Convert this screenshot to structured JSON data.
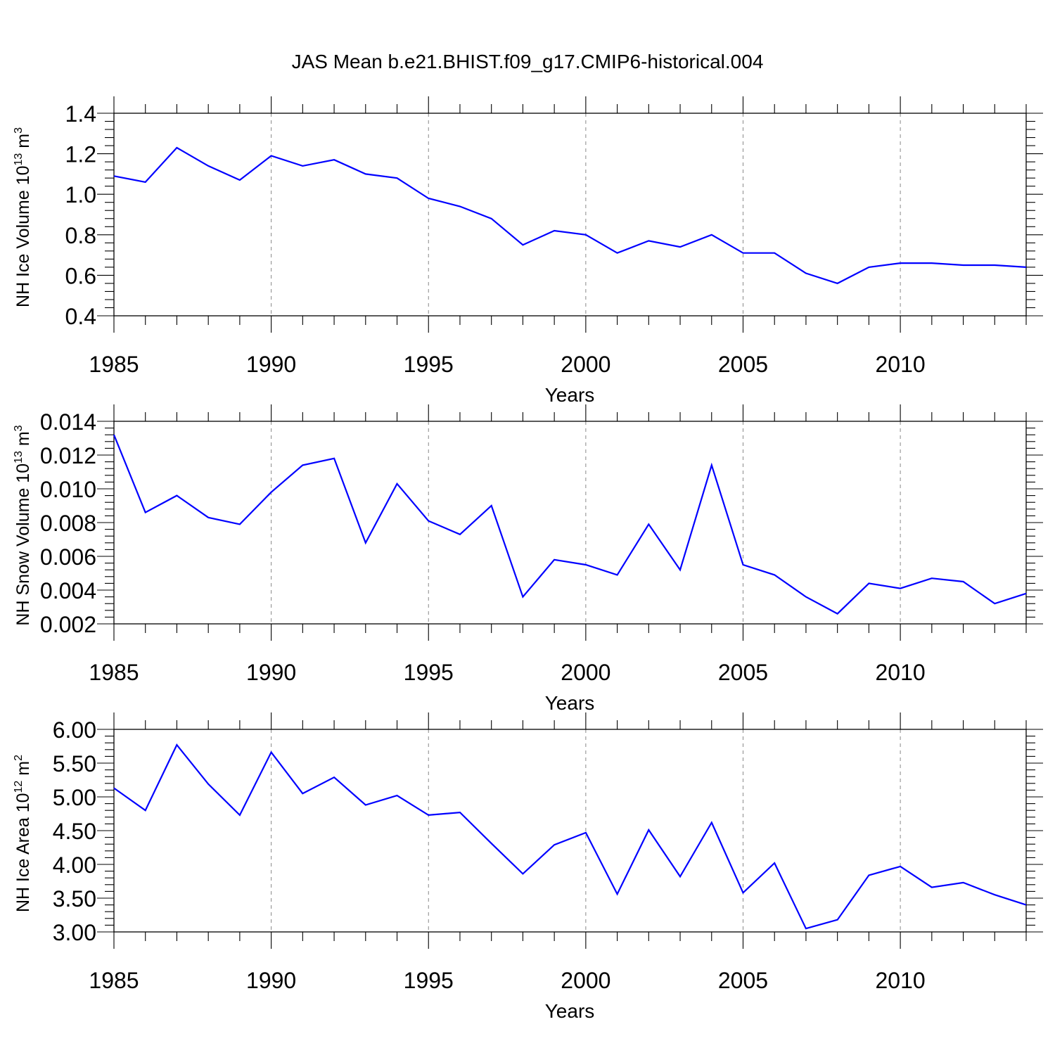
{
  "title": "JAS Mean b.e21.BHIST.f09_g17.CMIP6-historical.004",
  "colors": {
    "line": "#0000ff",
    "axis": "#000000",
    "grid": "#888888"
  },
  "chart_data": [
    {
      "type": "line",
      "name": "ice-volume",
      "ylabel_main": "NH Ice Volume 10",
      "ylabel_sup": "13",
      "ylabel_unit": " m",
      "ylabel_unit_sup": "3",
      "xlabel": "Years",
      "xlim": [
        1985,
        2014
      ],
      "ylim": [
        0.4,
        1.4
      ],
      "yticks": [
        0.4,
        0.6,
        0.8,
        1.0,
        1.2,
        1.4
      ],
      "ytick_labels": [
        "0.4",
        "0.6",
        "0.8",
        "1.0",
        "1.2",
        "1.4"
      ],
      "xticks": [
        1985,
        1990,
        1995,
        2000,
        2005,
        2010
      ],
      "xtick_labels": [
        "1985",
        "1990",
        "1995",
        "2000",
        "2005",
        "2010"
      ],
      "x": [
        1985,
        1986,
        1987,
        1988,
        1989,
        1990,
        1991,
        1992,
        1993,
        1994,
        1995,
        1996,
        1997,
        1998,
        1999,
        2000,
        2001,
        2002,
        2003,
        2004,
        2005,
        2006,
        2007,
        2008,
        2009,
        2010,
        2011,
        2012,
        2013,
        2014
      ],
      "values": [
        1.09,
        1.06,
        1.23,
        1.14,
        1.07,
        1.19,
        1.14,
        1.17,
        1.1,
        1.08,
        0.98,
        0.94,
        0.88,
        0.75,
        0.82,
        0.8,
        0.71,
        0.77,
        0.74,
        0.8,
        0.71,
        0.71,
        0.61,
        0.56,
        0.64,
        0.66,
        0.66,
        0.65,
        0.65,
        0.64
      ]
    },
    {
      "type": "line",
      "name": "snow-volume",
      "ylabel_main": "NH Snow Volume 10",
      "ylabel_sup": "13",
      "ylabel_unit": " m",
      "ylabel_unit_sup": "3",
      "xlabel": "Years",
      "xlim": [
        1985,
        2014
      ],
      "ylim": [
        0.002,
        0.014
      ],
      "yticks": [
        0.002,
        0.004,
        0.006,
        0.008,
        0.01,
        0.012,
        0.014
      ],
      "ytick_labels": [
        "0.002",
        "0.004",
        "0.006",
        "0.008",
        "0.010",
        "0.012",
        "0.014"
      ],
      "xticks": [
        1985,
        1990,
        1995,
        2000,
        2005,
        2010
      ],
      "xtick_labels": [
        "1985",
        "1990",
        "1995",
        "2000",
        "2005",
        "2010"
      ],
      "x": [
        1985,
        1986,
        1987,
        1988,
        1989,
        1990,
        1991,
        1992,
        1993,
        1994,
        1995,
        1996,
        1997,
        1998,
        1999,
        2000,
        2001,
        2002,
        2003,
        2004,
        2005,
        2006,
        2007,
        2008,
        2009,
        2010,
        2011,
        2012,
        2013,
        2014
      ],
      "values": [
        0.0132,
        0.0086,
        0.0096,
        0.0083,
        0.0079,
        0.0098,
        0.0114,
        0.0118,
        0.0068,
        0.0103,
        0.0081,
        0.0073,
        0.009,
        0.0036,
        0.0058,
        0.0055,
        0.0049,
        0.0079,
        0.0052,
        0.0114,
        0.0055,
        0.0049,
        0.0036,
        0.0026,
        0.0044,
        0.0041,
        0.0047,
        0.0045,
        0.0032,
        0.0038
      ]
    },
    {
      "type": "line",
      "name": "ice-area",
      "ylabel_main": "NH Ice Area 10",
      "ylabel_sup": "12",
      "ylabel_unit": " m",
      "ylabel_unit_sup": "2",
      "xlabel": "Years",
      "xlim": [
        1985,
        2014
      ],
      "ylim": [
        3.0,
        6.0
      ],
      "yticks": [
        3.0,
        3.5,
        4.0,
        4.5,
        5.0,
        5.5,
        6.0
      ],
      "ytick_labels": [
        "3.00",
        "3.50",
        "4.00",
        "4.50",
        "5.00",
        "5.50",
        "6.00"
      ],
      "xticks": [
        1985,
        1990,
        1995,
        2000,
        2005,
        2010
      ],
      "xtick_labels": [
        "1985",
        "1990",
        "1995",
        "2000",
        "2005",
        "2010"
      ],
      "x": [
        1985,
        1986,
        1987,
        1988,
        1989,
        1990,
        1991,
        1992,
        1993,
        1994,
        1995,
        1996,
        1997,
        1998,
        1999,
        2000,
        2001,
        2002,
        2003,
        2004,
        2005,
        2006,
        2007,
        2008,
        2009,
        2010,
        2011,
        2012,
        2013,
        2014
      ],
      "values": [
        5.13,
        4.8,
        5.77,
        5.19,
        4.73,
        5.66,
        5.05,
        5.29,
        4.88,
        5.02,
        4.73,
        4.77,
        4.31,
        3.86,
        4.29,
        4.47,
        3.56,
        4.51,
        3.82,
        4.62,
        3.58,
        4.02,
        3.05,
        3.18,
        3.84,
        3.97,
        3.66,
        3.73,
        3.55,
        3.4
      ]
    }
  ]
}
